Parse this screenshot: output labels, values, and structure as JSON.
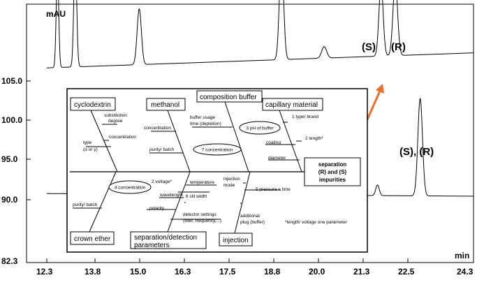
{
  "chart": {
    "y_unit": "mAU",
    "x_unit": "min",
    "y_ticks": [
      "105.0",
      "100.0",
      "95.0",
      "90.0",
      "82.3"
    ],
    "x_ticks": [
      "12.3",
      "13.8",
      "15.0",
      "16.3",
      "17.5",
      "18.8",
      "20.0",
      "21.3",
      "22.5",
      "24.3"
    ],
    "peak_label_s": "(S)",
    "peak_label_r": "(R)",
    "peak_label_sr": "(S), (R)"
  },
  "chart_data": {
    "type": "line",
    "xlabel": "min",
    "ylabel": "mAU",
    "xlim": [
      12.3,
      24.3
    ],
    "ylim": [
      82.3,
      111.5
    ],
    "series": [
      {
        "peaks": [
          {
            "x": 12.6,
            "height": 11.2,
            "width": 0.035
          },
          {
            "x": 13.1,
            "height": 13.0,
            "width": 0.04
          },
          {
            "x": 14.9,
            "height": 6.3,
            "width": 0.06
          },
          {
            "x": 18.9,
            "height": 11.5,
            "width": 0.06
          },
          {
            "x": 20.1,
            "height": 1.3,
            "width": 0.07
          },
          {
            "x": 21.7,
            "height": 8.0,
            "width": 0.06
          },
          {
            "x": 22.1,
            "height": 8.3,
            "width": 0.065
          }
        ],
        "baseline": [
          {
            "x": 12.3,
            "y": 104.3
          },
          {
            "x": 24.3,
            "y": 106.0
          }
        ]
      },
      {
        "peaks": [
          {
            "x": 21.6,
            "height": 1.2,
            "width": 0.05
          },
          {
            "x": 22.8,
            "height": 11.0,
            "width": 0.065
          }
        ],
        "baseline": [
          {
            "x": 12.3,
            "y": 90.1
          },
          {
            "x": 24.3,
            "y": 89.8
          }
        ]
      }
    ]
  },
  "fishbone": {
    "effect_lines": [
      "separation",
      "(R) and (S)",
      "impurities"
    ],
    "categories": {
      "cyclodextrin": "cyclodextrin",
      "methanol": "methanol",
      "composition_buffer": "composition buffer",
      "capillary_material": "capillary material",
      "crown_ether": "crown ether",
      "separation_detection": [
        "separation/detection",
        "parameters"
      ],
      "injection": "injection"
    },
    "causes": {
      "substitution_degree": [
        "substitution",
        "degree"
      ],
      "cd_concentration": "concentration",
      "type_alpha_gamma": [
        "type",
        "(α or γ)"
      ],
      "meth_concentration": "concentration",
      "purity_batch_meth": "purity/ batch",
      "buffer_usage": [
        "buffer usage",
        "time (depletion)"
      ],
      "ph_buffer": "3 pH of buffer",
      "concentration_7": "7 concentration",
      "type_brand": "1 type/ brand",
      "length": "2 length*",
      "coating": "coating",
      "diameter": "diameter",
      "concentration_4": "4 concentration",
      "purity_batch_crown": "purity/ batch",
      "voltage": "2 voltage*",
      "temperature": "temperature",
      "wavelength": "wavelength",
      "slit_width": "6 slit width",
      "polarity": "polarity",
      "detector_settings": [
        "detector settings",
        "(filter, frequency,...)"
      ],
      "injection_mode": [
        "injection",
        "mode"
      ],
      "pressure_time": "5 pressure x time",
      "additional_plug": [
        "additional",
        "plug (buffer)"
      ],
      "footnote": "*length/ voltage one parameter"
    }
  },
  "colors": {
    "arrow": "#e8702a",
    "line": "#000000",
    "background": "#ffffff"
  }
}
